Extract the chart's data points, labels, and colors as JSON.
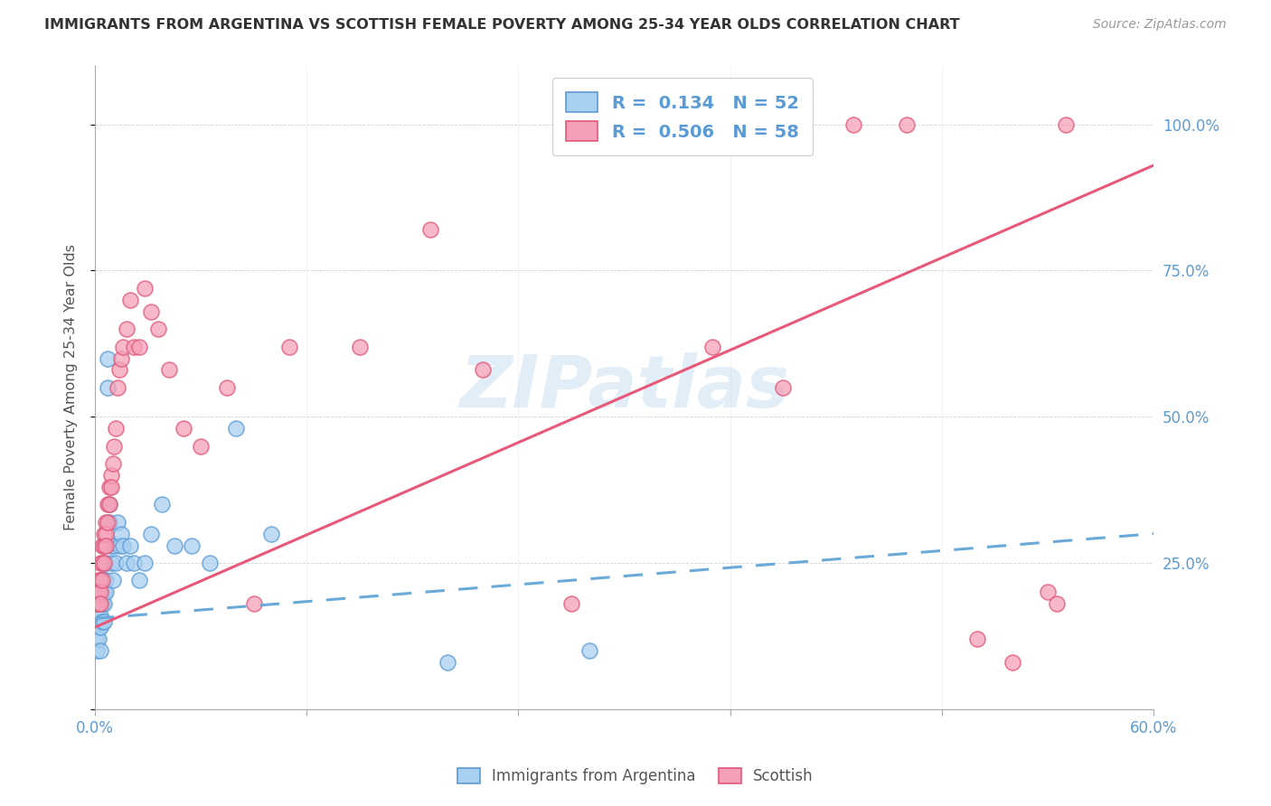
{
  "title": "IMMIGRANTS FROM ARGENTINA VS SCOTTISH FEMALE POVERTY AMONG 25-34 YEAR OLDS CORRELATION CHART",
  "source": "Source: ZipAtlas.com",
  "ylabel": "Female Poverty Among 25-34 Year Olds",
  "xlim": [
    0.0,
    0.6
  ],
  "ylim": [
    0.0,
    1.1
  ],
  "xticks": [
    0.0,
    0.12,
    0.24,
    0.36,
    0.48,
    0.6
  ],
  "xticklabels": [
    "0.0%",
    "",
    "",
    "",
    "",
    "60.0%"
  ],
  "yticks_right": [
    0.0,
    0.25,
    0.5,
    0.75,
    1.0
  ],
  "ytick_right_labels": [
    "",
    "25.0%",
    "50.0%",
    "75.0%",
    "100.0%"
  ],
  "blue_color": "#A8D0F0",
  "pink_color": "#F5A0B8",
  "blue_edge_color": "#5B9BD5",
  "pink_edge_color": "#E05878",
  "blue_line_color": "#6AAAD8",
  "pink_line_color": "#E85878",
  "watermark": "ZIPatlas",
  "blue_scatter_x": [
    0.001,
    0.001,
    0.001,
    0.001,
    0.002,
    0.002,
    0.002,
    0.002,
    0.002,
    0.003,
    0.003,
    0.003,
    0.003,
    0.003,
    0.004,
    0.004,
    0.004,
    0.004,
    0.005,
    0.005,
    0.005,
    0.005,
    0.006,
    0.006,
    0.006,
    0.007,
    0.007,
    0.008,
    0.008,
    0.009,
    0.009,
    0.01,
    0.011,
    0.012,
    0.013,
    0.014,
    0.015,
    0.016,
    0.018,
    0.02,
    0.022,
    0.025,
    0.028,
    0.032,
    0.038,
    0.045,
    0.055,
    0.065,
    0.08,
    0.1,
    0.2,
    0.28
  ],
  "blue_scatter_y": [
    0.18,
    0.15,
    0.12,
    0.1,
    0.2,
    0.18,
    0.16,
    0.14,
    0.12,
    0.2,
    0.18,
    0.16,
    0.14,
    0.1,
    0.22,
    0.2,
    0.18,
    0.15,
    0.22,
    0.2,
    0.18,
    0.15,
    0.25,
    0.22,
    0.2,
    0.6,
    0.55,
    0.35,
    0.32,
    0.28,
    0.25,
    0.22,
    0.28,
    0.25,
    0.32,
    0.28,
    0.3,
    0.28,
    0.25,
    0.28,
    0.25,
    0.22,
    0.25,
    0.3,
    0.35,
    0.28,
    0.28,
    0.25,
    0.48,
    0.3,
    0.08,
    0.1
  ],
  "pink_scatter_x": [
    0.001,
    0.001,
    0.002,
    0.002,
    0.002,
    0.003,
    0.003,
    0.003,
    0.003,
    0.004,
    0.004,
    0.004,
    0.005,
    0.005,
    0.005,
    0.006,
    0.006,
    0.006,
    0.007,
    0.007,
    0.008,
    0.008,
    0.009,
    0.009,
    0.01,
    0.011,
    0.012,
    0.013,
    0.014,
    0.015,
    0.016,
    0.018,
    0.02,
    0.022,
    0.025,
    0.028,
    0.032,
    0.036,
    0.042,
    0.05,
    0.06,
    0.075,
    0.09,
    0.11,
    0.15,
    0.19,
    0.22,
    0.27,
    0.35,
    0.39,
    0.4,
    0.43,
    0.46,
    0.5,
    0.52,
    0.54,
    0.545,
    0.55
  ],
  "pink_scatter_y": [
    0.2,
    0.18,
    0.22,
    0.2,
    0.18,
    0.25,
    0.22,
    0.2,
    0.18,
    0.28,
    0.25,
    0.22,
    0.3,
    0.28,
    0.25,
    0.32,
    0.3,
    0.28,
    0.35,
    0.32,
    0.38,
    0.35,
    0.4,
    0.38,
    0.42,
    0.45,
    0.48,
    0.55,
    0.58,
    0.6,
    0.62,
    0.65,
    0.7,
    0.62,
    0.62,
    0.72,
    0.68,
    0.65,
    0.58,
    0.48,
    0.45,
    0.55,
    0.18,
    0.62,
    0.62,
    0.82,
    0.58,
    0.18,
    0.62,
    0.55,
    1.0,
    1.0,
    1.0,
    0.12,
    0.08,
    0.2,
    0.18,
    1.0
  ],
  "blue_trend_x": [
    0.0,
    0.6
  ],
  "blue_trend_y": [
    0.155,
    0.3
  ],
  "pink_trend_x": [
    0.0,
    0.6
  ],
  "pink_trend_y": [
    0.14,
    0.93
  ]
}
